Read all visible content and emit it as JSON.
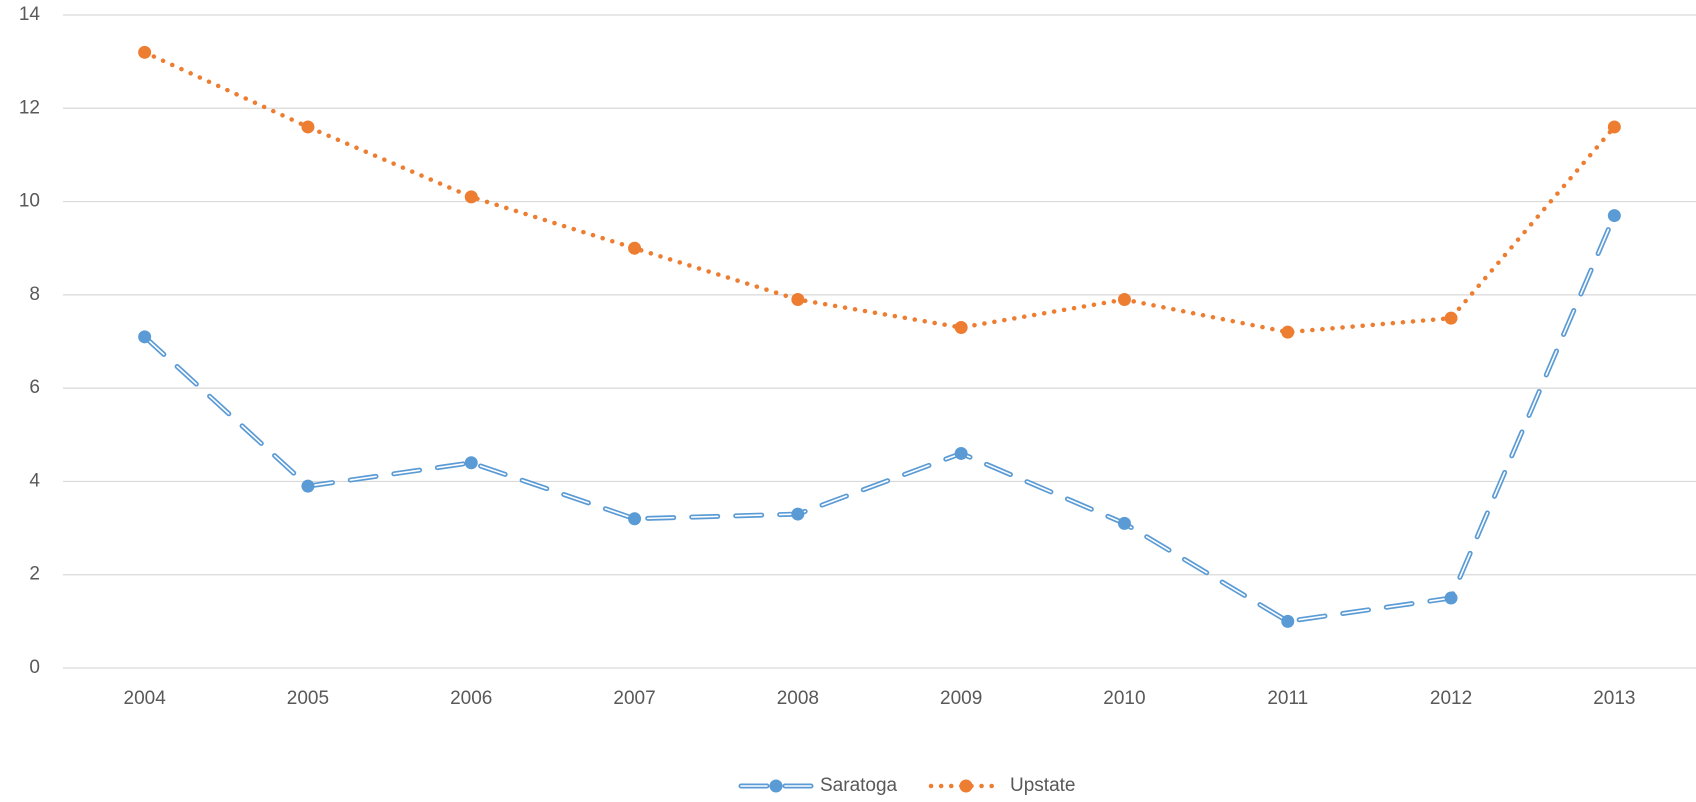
{
  "chart_data": {
    "type": "line",
    "categories": [
      "2004",
      "2005",
      "2006",
      "2007",
      "2008",
      "2009",
      "2010",
      "2011",
      "2012",
      "2013"
    ],
    "series": [
      {
        "name": "Saratoga",
        "color": "#5b9bd5",
        "line_style": "dashed",
        "values": [
          7.1,
          3.9,
          4.4,
          3.2,
          3.3,
          4.6,
          3.1,
          1.0,
          1.5,
          9.7
        ]
      },
      {
        "name": "Upstate",
        "color": "#ed7d31",
        "line_style": "dotted",
        "values": [
          13.2,
          11.6,
          10.1,
          9.0,
          7.9,
          7.3,
          7.9,
          7.2,
          7.5,
          11.6
        ]
      }
    ],
    "ylim": [
      0,
      14
    ],
    "yticks": [
      0,
      2,
      4,
      6,
      8,
      10,
      12,
      14
    ],
    "grid": true,
    "legend": "bottom"
  }
}
